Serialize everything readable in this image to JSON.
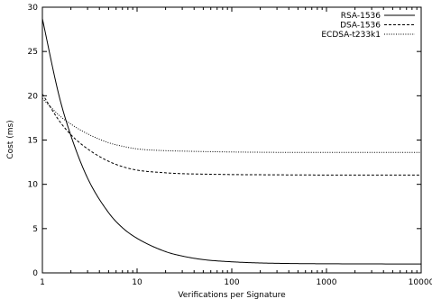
{
  "chart_data": {
    "type": "line",
    "title": "",
    "xlabel": "Verifications per Signature",
    "ylabel": "Cost (ms)",
    "x_scale": "log",
    "xlim": [
      1,
      10000
    ],
    "ylim": [
      0,
      30
    ],
    "x_ticks": [
      1,
      10,
      100,
      1000,
      10000
    ],
    "x_tick_labels": [
      "1",
      "10",
      "100",
      "1000",
      "10000"
    ],
    "y_ticks": [
      0,
      5,
      10,
      15,
      20,
      25,
      30
    ],
    "y_tick_labels": [
      "0",
      "5",
      "10",
      "15",
      "20",
      "25",
      "30"
    ],
    "grid": false,
    "legend_position": "top-right",
    "series": [
      {
        "name": "RSA-1536",
        "style": "solid",
        "color": "#000000",
        "x": [
          1,
          1.5,
          2,
          3,
          5,
          7,
          10,
          20,
          30,
          50,
          100,
          200,
          500,
          1000,
          10000
        ],
        "y": [
          28.7,
          20.0,
          15.5,
          10.7,
          6.8,
          5.1,
          3.9,
          2.4,
          1.9,
          1.5,
          1.25,
          1.12,
          1.05,
          1.03,
          1.0
        ]
      },
      {
        "name": "DSA-1536",
        "style": "dashed",
        "color": "#000000",
        "x": [
          1,
          1.5,
          2,
          3,
          5,
          7,
          10,
          20,
          30,
          50,
          100,
          200,
          500,
          1000,
          10000
        ],
        "y": [
          20.2,
          17.2,
          15.6,
          14.0,
          12.6,
          12.0,
          11.6,
          11.3,
          11.2,
          11.15,
          11.1,
          11.08,
          11.06,
          11.05,
          11.05
        ]
      },
      {
        "name": "ECDSA-t233k1",
        "style": "dotted",
        "color": "#000000",
        "x": [
          1,
          1.5,
          2,
          3,
          5,
          7,
          10,
          20,
          30,
          50,
          100,
          200,
          500,
          1000,
          10000
        ],
        "y": [
          19.7,
          17.8,
          16.8,
          15.7,
          14.7,
          14.3,
          14.0,
          13.8,
          13.75,
          13.7,
          13.65,
          13.62,
          13.6,
          13.6,
          13.6
        ]
      }
    ]
  }
}
